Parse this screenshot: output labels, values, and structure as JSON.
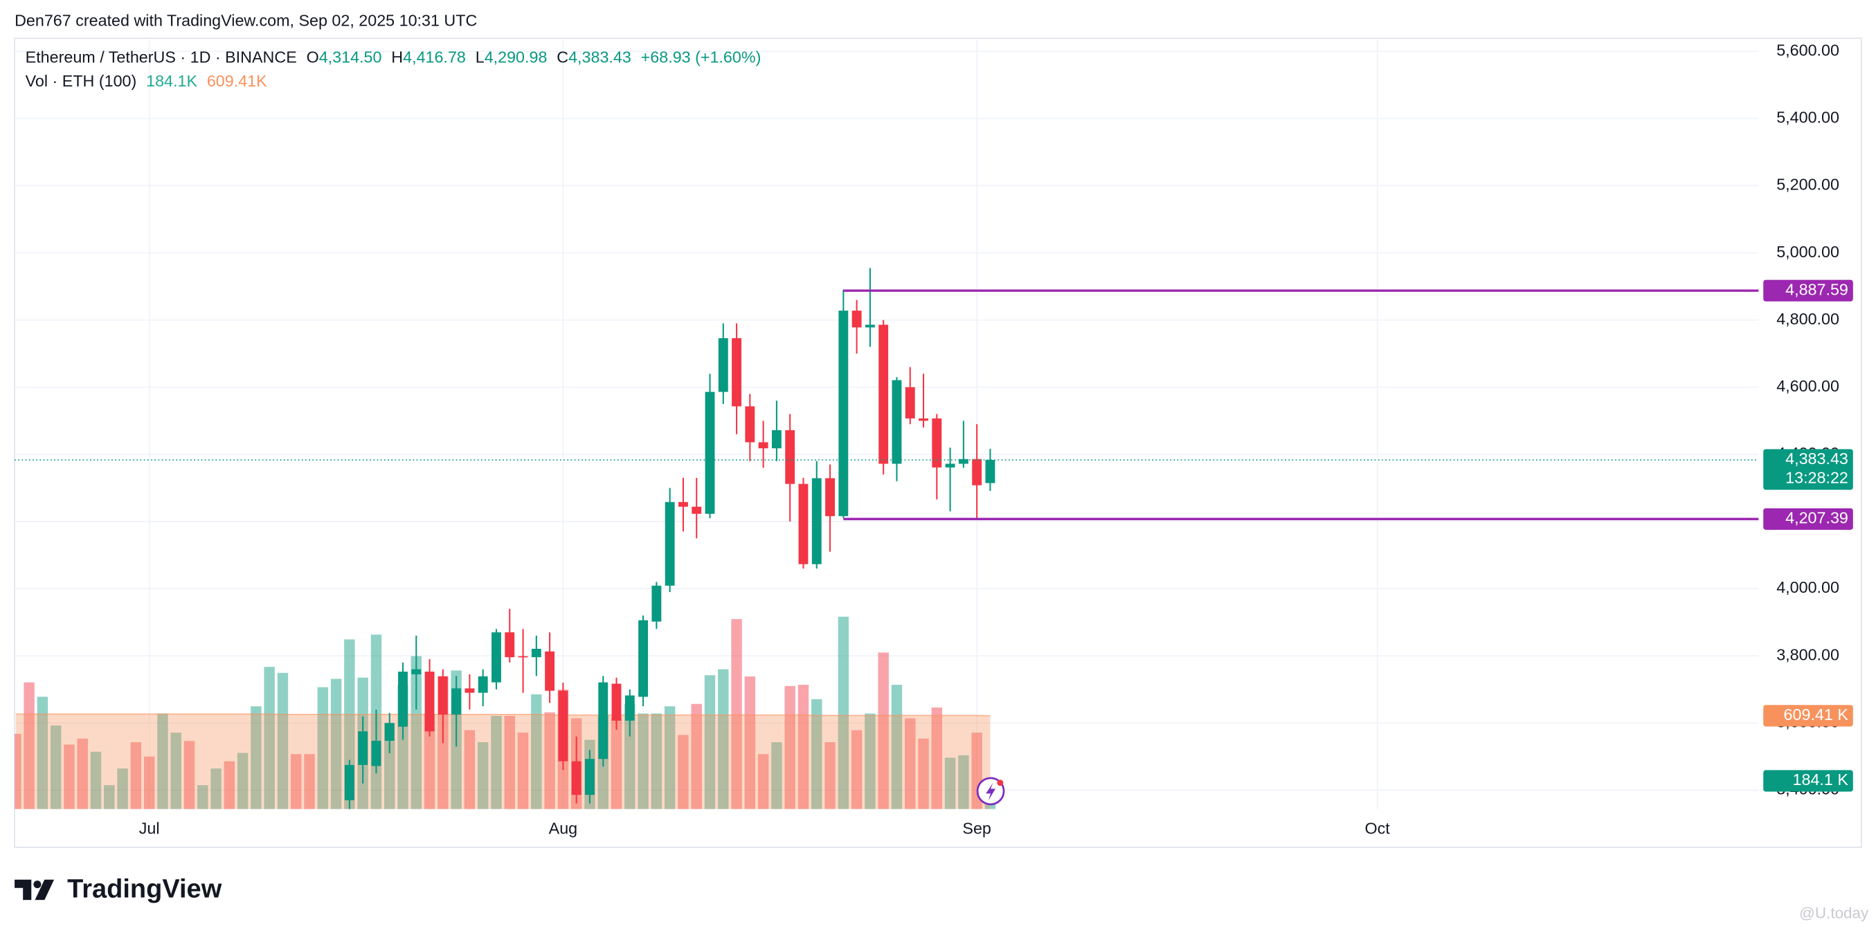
{
  "page": {
    "credit": "Den767 created with TradingView.com, Sep 02, 2025 10:31 UTC",
    "brand": "TradingView",
    "watermark": "@U.today"
  },
  "chart_data": {
    "type": "candlestick",
    "legend": {
      "symbol": "Ethereum / TetherUS · 1D · BINANCE",
      "ohlc": [
        {
          "key": "O",
          "value": "4,314.50"
        },
        {
          "key": "H",
          "value": "4,416.78"
        },
        {
          "key": "L",
          "value": "4,290.98"
        },
        {
          "key": "C",
          "value": "4,383.43"
        }
      ],
      "change": "+68.93 (+1.60%)",
      "volume_title": "Vol · ETH (100)",
      "volume_value": "184.1K",
      "volume_ma": "609.41K"
    },
    "x": [
      25,
      26,
      27,
      28,
      29,
      30,
      31,
      32,
      33,
      34,
      35,
      36,
      37,
      38,
      39,
      40,
      41,
      42,
      43,
      44,
      45,
      46,
      47,
      48,
      49,
      50,
      51,
      52,
      53,
      54,
      55,
      56,
      57,
      58,
      59,
      60,
      61,
      62,
      63,
      64,
      65,
      66,
      67,
      68,
      69,
      70,
      71,
      72,
      73
    ],
    "open": [
      3370,
      3475,
      3472,
      3547,
      3589,
      3745,
      3753,
      3739,
      3625,
      3703,
      3690,
      3721,
      3870,
      3799,
      3796,
      3813,
      3696,
      3486,
      3386,
      3493,
      3717,
      3607,
      3678,
      3902,
      4009,
      4258,
      4244,
      4223,
      4586,
      4746,
      4543,
      4436,
      4418,
      4472,
      4312,
      4073,
      4329,
      4216,
      4828,
      4778,
      4786,
      4372,
      4600,
      4507,
      4507,
      4361,
      4372,
      4386,
      4314.5
    ],
    "high": [
      3490,
      3620,
      3640,
      3630,
      3780,
      3860,
      3790,
      3760,
      3740,
      3745,
      3760,
      3880,
      3940,
      3880,
      3860,
      3870,
      3720,
      3560,
      3520,
      3740,
      3735,
      3700,
      3920,
      4020,
      4300,
      4330,
      4330,
      4640,
      4790,
      4790,
      4580,
      4500,
      4560,
      4520,
      4330,
      4380,
      4370,
      4890,
      4860,
      4955,
      4800,
      4630,
      4660,
      4640,
      4520,
      4420,
      4500,
      4490,
      4416.78
    ],
    "low": [
      3330,
      3420,
      3450,
      3510,
      3550,
      3640,
      3560,
      3540,
      3530,
      3640,
      3650,
      3700,
      3780,
      3690,
      3740,
      3660,
      3460,
      3360,
      3360,
      3470,
      3580,
      3560,
      3650,
      3880,
      3990,
      4170,
      4150,
      4210,
      4550,
      4460,
      4380,
      4360,
      4380,
      4200,
      4060,
      4060,
      4110,
      4210,
      4700,
      4720,
      4340,
      4320,
      4490,
      4480,
      4266,
      4230,
      4360,
      4210,
      4290.98
    ],
    "close": [
      3475,
      3575,
      3547,
      3600,
      3753,
      3760,
      3575,
      3625,
      3703,
      3690,
      3739,
      3870,
      3796,
      3796,
      3821,
      3696,
      3486,
      3386,
      3493,
      3721,
      3607,
      3682,
      3906,
      4009,
      4258,
      4244,
      4223,
      4586,
      4746,
      4543,
      4436,
      4418,
      4472,
      4312,
      4073,
      4329,
      4216,
      4828,
      4778,
      4786,
      4372,
      4621,
      4507,
      4500,
      4361,
      4372,
      4386,
      4308,
      4383.43
    ],
    "up_color": "#089981",
    "down_color": "#f23645",
    "volume": {
      "x": [
        0,
        1,
        2,
        3,
        4,
        5,
        6,
        7,
        8,
        9,
        10,
        11,
        12,
        13,
        14,
        15,
        16,
        17,
        18,
        19,
        20,
        21,
        22,
        23,
        24,
        25,
        26,
        27,
        28,
        29,
        30,
        31,
        32,
        33,
        34,
        35,
        36,
        37,
        38,
        39,
        40,
        41,
        42,
        43,
        44,
        45,
        46,
        47,
        48,
        49,
        50,
        51,
        52,
        53,
        54,
        55,
        56,
        57,
        58,
        59,
        60,
        61,
        62,
        63,
        64,
        65,
        66,
        67,
        68,
        69,
        70,
        71,
        72,
        73
      ],
      "values": [
        491400,
        826800,
        733200,
        546000,
        421200,
        460200,
        374400,
        156000,
        265200,
        436800,
        343200,
        624000,
        499200,
        444600,
        156000,
        265200,
        312000,
        366600,
        670800,
        928200,
        889200,
        358800,
        358800,
        795600,
        850200,
        1107600,
        858000,
        1138800,
        561600,
        811200,
        998400,
        624000,
        865800,
        904800,
        514800,
        436800,
        608400,
        608400,
        499200,
        748800,
        631800,
        780000,
        592800,
        452400,
        608400,
        592800,
        686400,
        624000,
        624000,
        670800,
        483600,
        686400,
        873600,
        912600,
        1240200,
        865800,
        358800,
        436800,
        803400,
        811200,
        717600,
        436800,
        1255800,
        514800,
        624000,
        1021800,
        811200,
        592800,
        460200,
        663000,
        335400,
        351000,
        499200,
        184100
      ],
      "colors": [
        "#f23645",
        "#f23645",
        "#089981",
        "#089981",
        "#f23645",
        "#f23645",
        "#089981",
        "#089981",
        "#089981",
        "#f23645",
        "#f23645",
        "#089981",
        "#089981",
        "#f23645",
        "#089981",
        "#089981",
        "#f23645",
        "#089981",
        "#089981",
        "#089981",
        "#089981",
        "#f23645",
        "#f23645",
        "#089981",
        "#089981",
        "#089981",
        "#089981",
        "#089981",
        "#089981",
        "#089981",
        "#089981",
        "#f23645",
        "#f23645",
        "#089981",
        "#f23645",
        "#089981",
        "#089981",
        "#f23645",
        "#f23645",
        "#089981",
        "#f23645",
        "#f23645",
        "#f23645",
        "#089981",
        "#089981",
        "#f23645",
        "#089981",
        "#089981",
        "#089981",
        "#089981",
        "#f23645",
        "#f23645",
        "#089981",
        "#089981",
        "#f23645",
        "#f23645",
        "#f23645",
        "#089981",
        "#f23645",
        "#f23645",
        "#089981",
        "#f23645",
        "#089981",
        "#f23645",
        "#089981",
        "#f23645",
        "#089981",
        "#f23645",
        "#f23645",
        "#f23645",
        "#089981",
        "#089981",
        "#f23645",
        "#089981"
      ],
      "ma": [
        620000,
        620000,
        620000,
        620000,
        620000,
        620000,
        620000,
        620000,
        620000,
        620000,
        620000,
        620000,
        620000,
        620000,
        620000,
        620000,
        620000,
        620000,
        620000,
        620000,
        618000,
        618000,
        618000,
        618000,
        618000,
        618000,
        618000,
        618000,
        618000,
        618000,
        618000,
        618000,
        618000,
        618000,
        618000,
        618000,
        618000,
        618000,
        618000,
        618000,
        614000,
        614000,
        614000,
        614000,
        614000,
        614000,
        614000,
        614000,
        614000,
        614000,
        614000,
        614000,
        614000,
        614000,
        614000,
        614000,
        614000,
        614000,
        614000,
        614000,
        611000,
        611000,
        611000,
        611000,
        611000,
        611000,
        611000,
        611000,
        611000,
        611000,
        611000,
        611000,
        611000,
        609410
      ],
      "ma_color": "#f7925d",
      "last": {
        "value": 184100,
        "label": "184.1 K"
      },
      "ma_last": {
        "value": 609410,
        "label": "609.41 K"
      }
    },
    "vlim": [
      0,
      5023200
    ],
    "xlim": [
      -0.09,
      130.56
    ],
    "xticks": [
      {
        "value": 10,
        "label": "Jul"
      },
      {
        "value": 41,
        "label": "Aug"
      },
      {
        "value": 72,
        "label": "Sep"
      },
      {
        "value": 102,
        "label": "Oct"
      }
    ],
    "ylim": [
      3343.6,
      5635.6
    ],
    "yticks": [
      {
        "value": 3400,
        "label": "3,400.00"
      },
      {
        "value": 3600,
        "label": "3,600.00"
      },
      {
        "value": 3800,
        "label": "3,800.00"
      },
      {
        "value": 4000,
        "label": "4,000.00"
      },
      {
        "value": 4200,
        "label": "4,200.00"
      },
      {
        "value": 4400,
        "label": "4,400.00"
      },
      {
        "value": 4600,
        "label": "4,600.00"
      },
      {
        "value": 4800,
        "label": "4,800.00"
      },
      {
        "value": 5000,
        "label": "5,000.00"
      },
      {
        "value": 5200,
        "label": "5,200.00"
      },
      {
        "value": 5400,
        "label": "5,400.00"
      },
      {
        "value": 5600,
        "label": "5,600.00"
      }
    ],
    "lines": [
      {
        "value": 4887.59,
        "label": "4,887.59",
        "x": 62,
        "color": "#9c27b0"
      },
      {
        "value": 4207.39,
        "label": "4,207.39",
        "x": 62,
        "color": "#9c27b0"
      }
    ],
    "last_price": {
      "value": 4383.43,
      "label": "4,383.43",
      "countdown": "13:28:22"
    },
    "grid": true
  }
}
